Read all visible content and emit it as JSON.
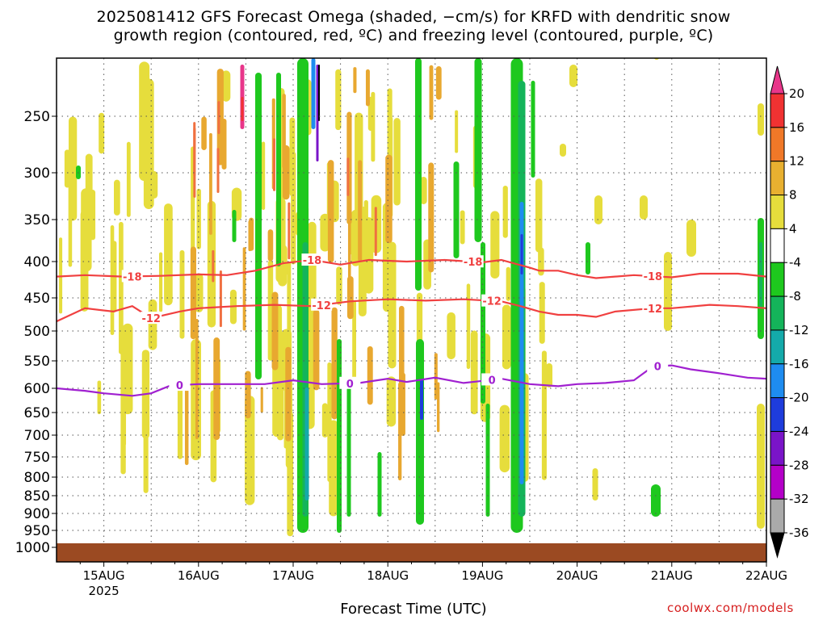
{
  "title_line1": "2025081412 GFS Forecast Omega (shaded, −cm/s) for KRFD with dendritic snow",
  "title_line2": "growth region (contoured, red, ºC) and freezing level (contoured, purple, ºC)",
  "credit": "coolwx.com/models",
  "chart_data": {
    "type": "heatmap",
    "xlabel": "Forecast Time (UTC)",
    "x_ticks": [
      {
        "label": "15AUG",
        "sublabel": "2025",
        "day": 15
      },
      {
        "label": "16AUG",
        "sublabel": "",
        "day": 16
      },
      {
        "label": "17AUG",
        "sublabel": "",
        "day": 17
      },
      {
        "label": "18AUG",
        "sublabel": "",
        "day": 18
      },
      {
        "label": "19AUG",
        "sublabel": "",
        "day": 19
      },
      {
        "label": "20AUG",
        "sublabel": "",
        "day": 20
      },
      {
        "label": "21AUG",
        "sublabel": "",
        "day": 21
      },
      {
        "label": "22AUG",
        "sublabel": "",
        "day": 22
      }
    ],
    "x_range_days": [
      14.5,
      22.0
    ],
    "y_ticks_hPa": [
      250,
      300,
      350,
      400,
      450,
      500,
      550,
      600,
      650,
      700,
      750,
      800,
      850,
      900,
      950,
      1000
    ],
    "y_range_hPa": [
      200,
      1015
    ],
    "colorbar_labels": [
      "20",
      "16",
      "12",
      "8",
      "4",
      "-4",
      "-8",
      "-12",
      "-16",
      "-20",
      "-24",
      "-28",
      "-32",
      "-36"
    ],
    "colorbar_colors": [
      "#e8368a",
      "#f03232",
      "#f07828",
      "#e8b030",
      "#e6dd3c",
      "#ffffff",
      "#1ec81e",
      "#14b45a",
      "#14aaaa",
      "#1e8cf0",
      "#1e3cdc",
      "#7a14c8",
      "#b400c8",
      "#aaaaaa",
      "#000000"
    ],
    "contours": [
      {
        "label": "-18",
        "color": "#f04040",
        "points": [
          [
            14.5,
            420
          ],
          [
            14.8,
            418
          ],
          [
            15.2,
            420
          ],
          [
            15.6,
            419
          ],
          [
            16.0,
            417
          ],
          [
            16.3,
            418
          ],
          [
            16.6,
            412
          ],
          [
            16.9,
            402
          ],
          [
            17.2,
            398
          ],
          [
            17.5,
            404
          ],
          [
            17.8,
            398
          ],
          [
            18.2,
            400
          ],
          [
            18.6,
            398
          ],
          [
            19.0,
            401
          ],
          [
            19.2,
            398
          ],
          [
            19.5,
            408
          ],
          [
            19.6,
            412
          ],
          [
            19.8,
            412
          ],
          [
            20.0,
            418
          ],
          [
            20.2,
            422
          ],
          [
            20.6,
            418
          ],
          [
            21.0,
            421
          ],
          [
            21.3,
            416
          ],
          [
            21.7,
            416
          ],
          [
            22.0,
            420
          ]
        ],
        "label_days": [
          15.3,
          17.2,
          18.9,
          20.8
        ]
      },
      {
        "label": "-12",
        "color": "#f04040",
        "points": [
          [
            14.5,
            485
          ],
          [
            14.8,
            465
          ],
          [
            15.1,
            470
          ],
          [
            15.3,
            462
          ],
          [
            15.5,
            480
          ],
          [
            15.8,
            470
          ],
          [
            16.0,
            465
          ],
          [
            16.4,
            462
          ],
          [
            16.8,
            460
          ],
          [
            17.2,
            462
          ],
          [
            17.6,
            455
          ],
          [
            18.0,
            452
          ],
          [
            18.4,
            454
          ],
          [
            18.8,
            452
          ],
          [
            19.2,
            455
          ],
          [
            19.4,
            462
          ],
          [
            19.6,
            470
          ],
          [
            19.8,
            475
          ],
          [
            20.0,
            475
          ],
          [
            20.2,
            478
          ],
          [
            20.4,
            470
          ],
          [
            20.8,
            465
          ],
          [
            21.0,
            465
          ],
          [
            21.4,
            460
          ],
          [
            21.7,
            462
          ],
          [
            22.0,
            465
          ]
        ],
        "label_days": [
          15.5,
          17.3,
          19.1,
          20.8
        ]
      },
      {
        "label": "0",
        "color": "#a020d0",
        "points": [
          [
            14.5,
            600
          ],
          [
            14.8,
            605
          ],
          [
            15.0,
            610
          ],
          [
            15.3,
            615
          ],
          [
            15.5,
            610
          ],
          [
            15.7,
            595
          ],
          [
            16.0,
            592
          ],
          [
            16.3,
            592
          ],
          [
            16.7,
            592
          ],
          [
            17.0,
            585
          ],
          [
            17.3,
            592
          ],
          [
            17.7,
            590
          ],
          [
            18.0,
            582
          ],
          [
            18.2,
            588
          ],
          [
            18.5,
            580
          ],
          [
            18.8,
            590
          ],
          [
            19.0,
            586
          ],
          [
            19.2,
            582
          ],
          [
            19.5,
            592
          ],
          [
            19.8,
            596
          ],
          [
            20.0,
            592
          ],
          [
            20.3,
            590
          ],
          [
            20.6,
            585
          ],
          [
            20.8,
            560
          ],
          [
            21.0,
            558
          ],
          [
            21.2,
            565
          ],
          [
            21.5,
            572
          ],
          [
            21.8,
            580
          ],
          [
            22.0,
            582
          ]
        ],
        "label_days": [
          15.8,
          17.6,
          19.1,
          20.85
        ]
      }
    ]
  }
}
